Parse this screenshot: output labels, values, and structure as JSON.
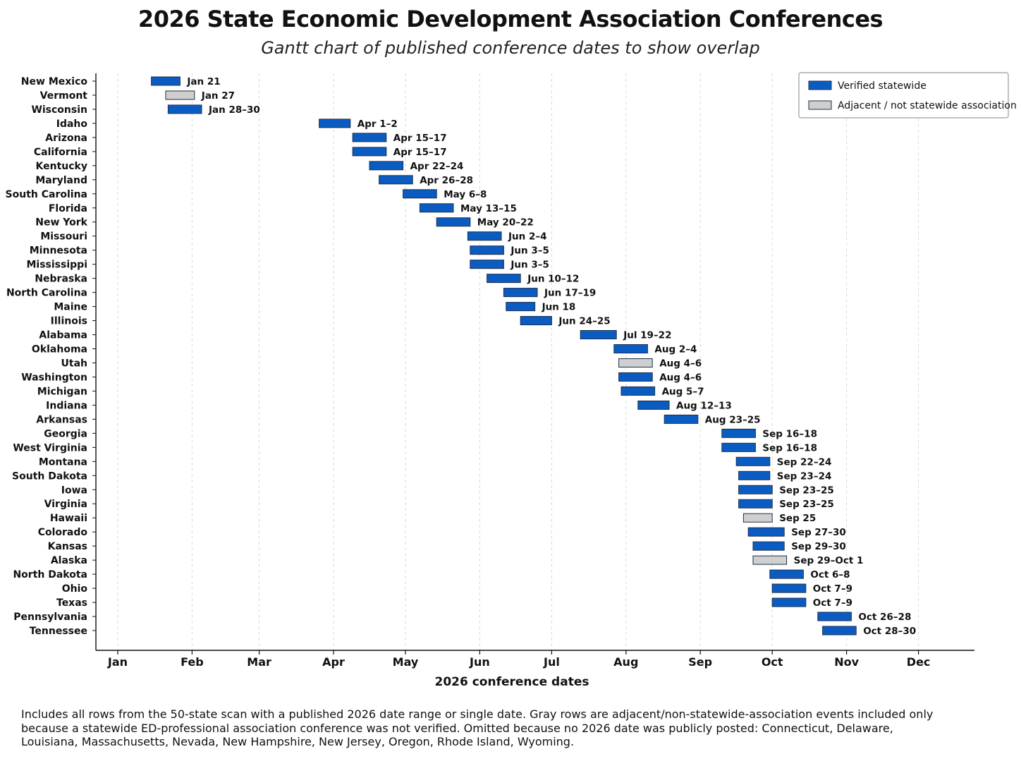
{
  "title": "2026 State Economic Development Association Conferences",
  "subtitle": "Gantt chart of published conference dates to show overlap",
  "footnote": "Includes all rows from the 50-state scan with a published 2026 date range or single date. Gray rows are adjacent/non-statewide-association events included only because a statewide ED-professional association conference was not verified. Omitted because no 2026 date was publicly posted: Connecticut, Delaware, Louisiana, Massachusetts, Nevada, New Hampshire, New Jersey, Oregon, Rhode Island, Wyoming.",
  "chart_data": {
    "type": "gantt",
    "xlabel": "2026 conference dates",
    "x_ticks": [
      "Jan",
      "Feb",
      "Mar",
      "Apr",
      "May",
      "Jun",
      "Jul",
      "Aug",
      "Sep",
      "Oct",
      "Nov",
      "Dec"
    ],
    "grid": "vertical dashed at month starts",
    "legend_position": "top-right",
    "colors": {
      "verified": "#0b5cc2",
      "adjacent": "#cfcfcf"
    },
    "legend": [
      {
        "key": "verified",
        "label": "Verified statewide"
      },
      {
        "key": "adjacent",
        "label": "Adjacent / not statewide association"
      }
    ],
    "rows": [
      {
        "state": "New Mexico",
        "label": "Jan 21",
        "start": "2026-01-21",
        "end": "2026-01-21",
        "category": "verified"
      },
      {
        "state": "Vermont",
        "label": "Jan 27",
        "start": "2026-01-27",
        "end": "2026-01-27",
        "category": "adjacent"
      },
      {
        "state": "Wisconsin",
        "label": "Jan 28–30",
        "start": "2026-01-28",
        "end": "2026-01-30",
        "category": "verified"
      },
      {
        "state": "Idaho",
        "label": "Apr 1–2",
        "start": "2026-04-01",
        "end": "2026-04-02",
        "category": "verified"
      },
      {
        "state": "Arizona",
        "label": "Apr 15–17",
        "start": "2026-04-15",
        "end": "2026-04-17",
        "category": "verified"
      },
      {
        "state": "California",
        "label": "Apr 15–17",
        "start": "2026-04-15",
        "end": "2026-04-17",
        "category": "verified"
      },
      {
        "state": "Kentucky",
        "label": "Apr 22–24",
        "start": "2026-04-22",
        "end": "2026-04-24",
        "category": "verified"
      },
      {
        "state": "Maryland",
        "label": "Apr 26–28",
        "start": "2026-04-26",
        "end": "2026-04-28",
        "category": "verified"
      },
      {
        "state": "South Carolina",
        "label": "May 6–8",
        "start": "2026-05-06",
        "end": "2026-05-08",
        "category": "verified"
      },
      {
        "state": "Florida",
        "label": "May 13–15",
        "start": "2026-05-13",
        "end": "2026-05-15",
        "category": "verified"
      },
      {
        "state": "New York",
        "label": "May 20–22",
        "start": "2026-05-20",
        "end": "2026-05-22",
        "category": "verified"
      },
      {
        "state": "Missouri",
        "label": "Jun 2–4",
        "start": "2026-06-02",
        "end": "2026-06-04",
        "category": "verified"
      },
      {
        "state": "Minnesota",
        "label": "Jun 3–5",
        "start": "2026-06-03",
        "end": "2026-06-05",
        "category": "verified"
      },
      {
        "state": "Mississippi",
        "label": "Jun 3–5",
        "start": "2026-06-03",
        "end": "2026-06-05",
        "category": "verified"
      },
      {
        "state": "Nebraska",
        "label": "Jun 10–12",
        "start": "2026-06-10",
        "end": "2026-06-12",
        "category": "verified"
      },
      {
        "state": "North Carolina",
        "label": "Jun 17–19",
        "start": "2026-06-17",
        "end": "2026-06-19",
        "category": "verified"
      },
      {
        "state": "Maine",
        "label": "Jun 18",
        "start": "2026-06-18",
        "end": "2026-06-18",
        "category": "verified"
      },
      {
        "state": "Illinois",
        "label": "Jun 24–25",
        "start": "2026-06-24",
        "end": "2026-06-25",
        "category": "verified"
      },
      {
        "state": "Alabama",
        "label": "Jul 19–22",
        "start": "2026-07-19",
        "end": "2026-07-22",
        "category": "verified"
      },
      {
        "state": "Oklahoma",
        "label": "Aug 2–4",
        "start": "2026-08-02",
        "end": "2026-08-04",
        "category": "verified"
      },
      {
        "state": "Utah",
        "label": "Aug 4–6",
        "start": "2026-08-04",
        "end": "2026-08-06",
        "category": "adjacent"
      },
      {
        "state": "Washington",
        "label": "Aug 4–6",
        "start": "2026-08-04",
        "end": "2026-08-06",
        "category": "verified"
      },
      {
        "state": "Michigan",
        "label": "Aug 5–7",
        "start": "2026-08-05",
        "end": "2026-08-07",
        "category": "verified"
      },
      {
        "state": "Indiana",
        "label": "Aug 12–13",
        "start": "2026-08-12",
        "end": "2026-08-13",
        "category": "verified"
      },
      {
        "state": "Arkansas",
        "label": "Aug 23–25",
        "start": "2026-08-23",
        "end": "2026-08-25",
        "category": "verified"
      },
      {
        "state": "Georgia",
        "label": "Sep 16–18",
        "start": "2026-09-16",
        "end": "2026-09-18",
        "category": "verified"
      },
      {
        "state": "West Virginia",
        "label": "Sep 16–18",
        "start": "2026-09-16",
        "end": "2026-09-18",
        "category": "verified"
      },
      {
        "state": "Montana",
        "label": "Sep 22–24",
        "start": "2026-09-22",
        "end": "2026-09-24",
        "category": "verified"
      },
      {
        "state": "South Dakota",
        "label": "Sep 23–24",
        "start": "2026-09-23",
        "end": "2026-09-24",
        "category": "verified"
      },
      {
        "state": "Iowa",
        "label": "Sep 23–25",
        "start": "2026-09-23",
        "end": "2026-09-25",
        "category": "verified"
      },
      {
        "state": "Virginia",
        "label": "Sep 23–25",
        "start": "2026-09-23",
        "end": "2026-09-25",
        "category": "verified"
      },
      {
        "state": "Hawaii",
        "label": "Sep 25",
        "start": "2026-09-25",
        "end": "2026-09-25",
        "category": "adjacent"
      },
      {
        "state": "Colorado",
        "label": "Sep 27–30",
        "start": "2026-09-27",
        "end": "2026-09-30",
        "category": "verified"
      },
      {
        "state": "Kansas",
        "label": "Sep 29–30",
        "start": "2026-09-29",
        "end": "2026-09-30",
        "category": "verified"
      },
      {
        "state": "Alaska",
        "label": "Sep 29–Oct 1",
        "start": "2026-09-29",
        "end": "2026-10-01",
        "category": "adjacent"
      },
      {
        "state": "North Dakota",
        "label": "Oct 6–8",
        "start": "2026-10-06",
        "end": "2026-10-08",
        "category": "verified"
      },
      {
        "state": "Ohio",
        "label": "Oct 7–9",
        "start": "2026-10-07",
        "end": "2026-10-09",
        "category": "verified"
      },
      {
        "state": "Texas",
        "label": "Oct 7–9",
        "start": "2026-10-07",
        "end": "2026-10-09",
        "category": "verified"
      },
      {
        "state": "Pennsylvania",
        "label": "Oct 26–28",
        "start": "2026-10-26",
        "end": "2026-10-28",
        "category": "verified"
      },
      {
        "state": "Tennessee",
        "label": "Oct 28–30",
        "start": "2026-10-28",
        "end": "2026-10-30",
        "category": "verified"
      }
    ]
  }
}
